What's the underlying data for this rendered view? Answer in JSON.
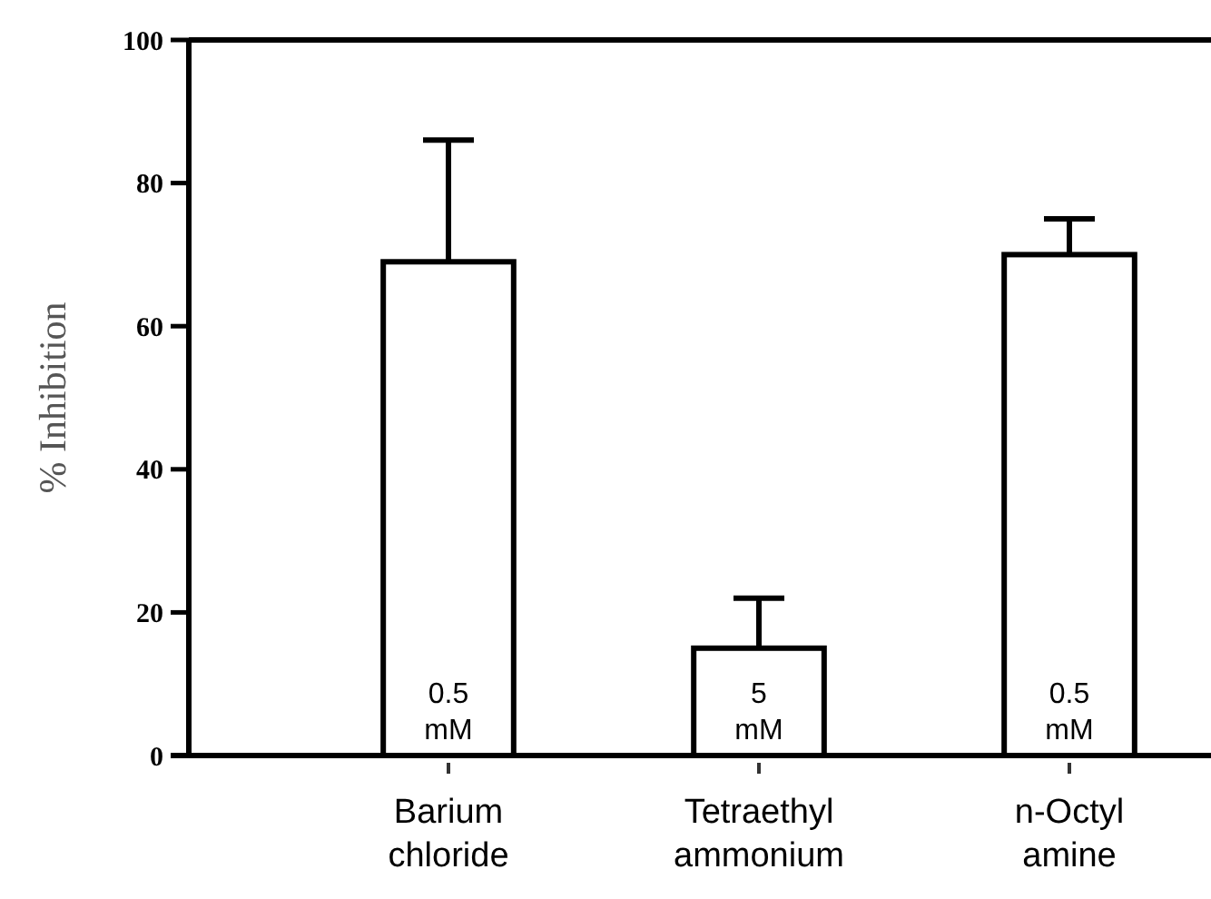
{
  "chart_data": {
    "type": "bar",
    "ylabel": "% Inhibition",
    "categories": [
      "Barium chloride",
      "Tetraethyl ammonium",
      "n-Octyl amine"
    ],
    "values": [
      69,
      15,
      70
    ],
    "errors": [
      [
        69,
        86
      ],
      [
        15,
        22
      ],
      [
        70,
        75
      ]
    ],
    "color": "#ffffff",
    "ylim": [
      0,
      100
    ],
    "yticks": [
      0,
      20,
      40,
      60,
      80,
      100
    ],
    "annotations": [
      "0.5 mM",
      "5 mM",
      "0.5 mM"
    ],
    "grid": false
  }
}
